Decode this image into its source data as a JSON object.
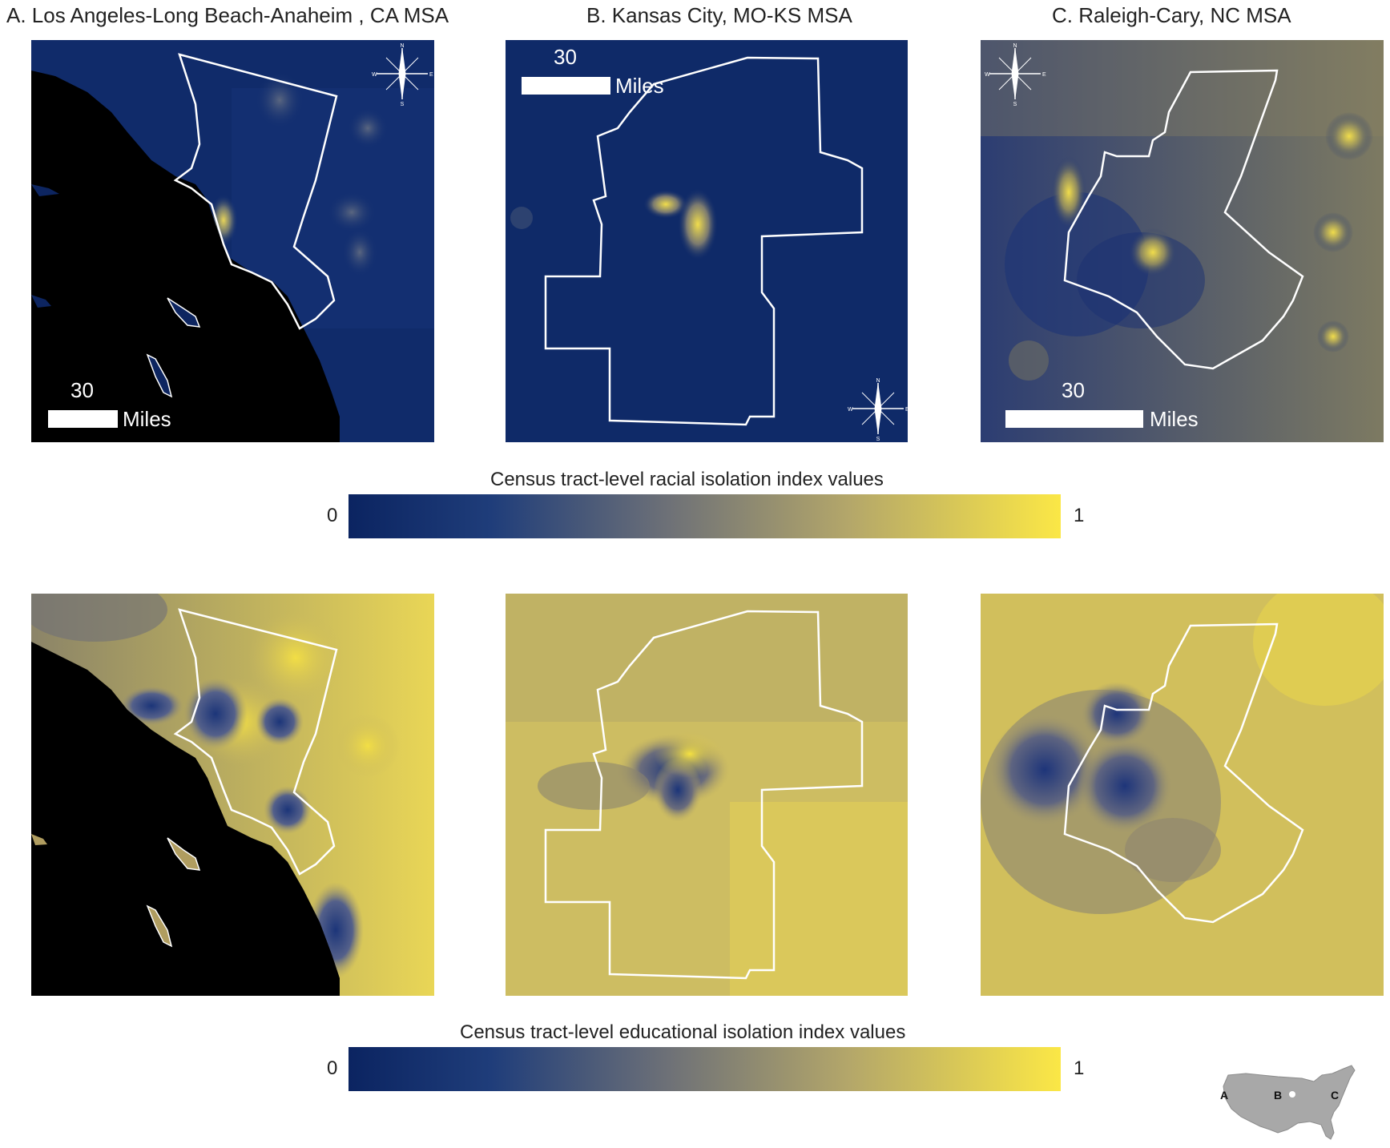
{
  "panels": [
    {
      "title": "A. Los Angeles-Long Beach-Anaheim , CA MSA"
    },
    {
      "title": "B. Kansas City, MO-KS MSA"
    },
    {
      "title": "C. Raleigh-Cary, NC MSA"
    }
  ],
  "scale_bar": {
    "distance": "30",
    "unit": "Miles"
  },
  "compass": {
    "n": "N",
    "s": "S",
    "e": "E",
    "w": "W"
  },
  "legends": {
    "racial": {
      "title": "Census tract-level racial isolation index values",
      "min": "0",
      "max": "1"
    },
    "educational": {
      "title": "Census tract-level educational isolation index values",
      "min": "0",
      "max": "1"
    }
  },
  "inset_labels": [
    "A",
    "B",
    "C"
  ],
  "colors": {
    "low": "#0b2461",
    "mid": "#7b7c7a",
    "high": "#f5e44a",
    "water": "#000000",
    "boundary": "#ffffff"
  }
}
